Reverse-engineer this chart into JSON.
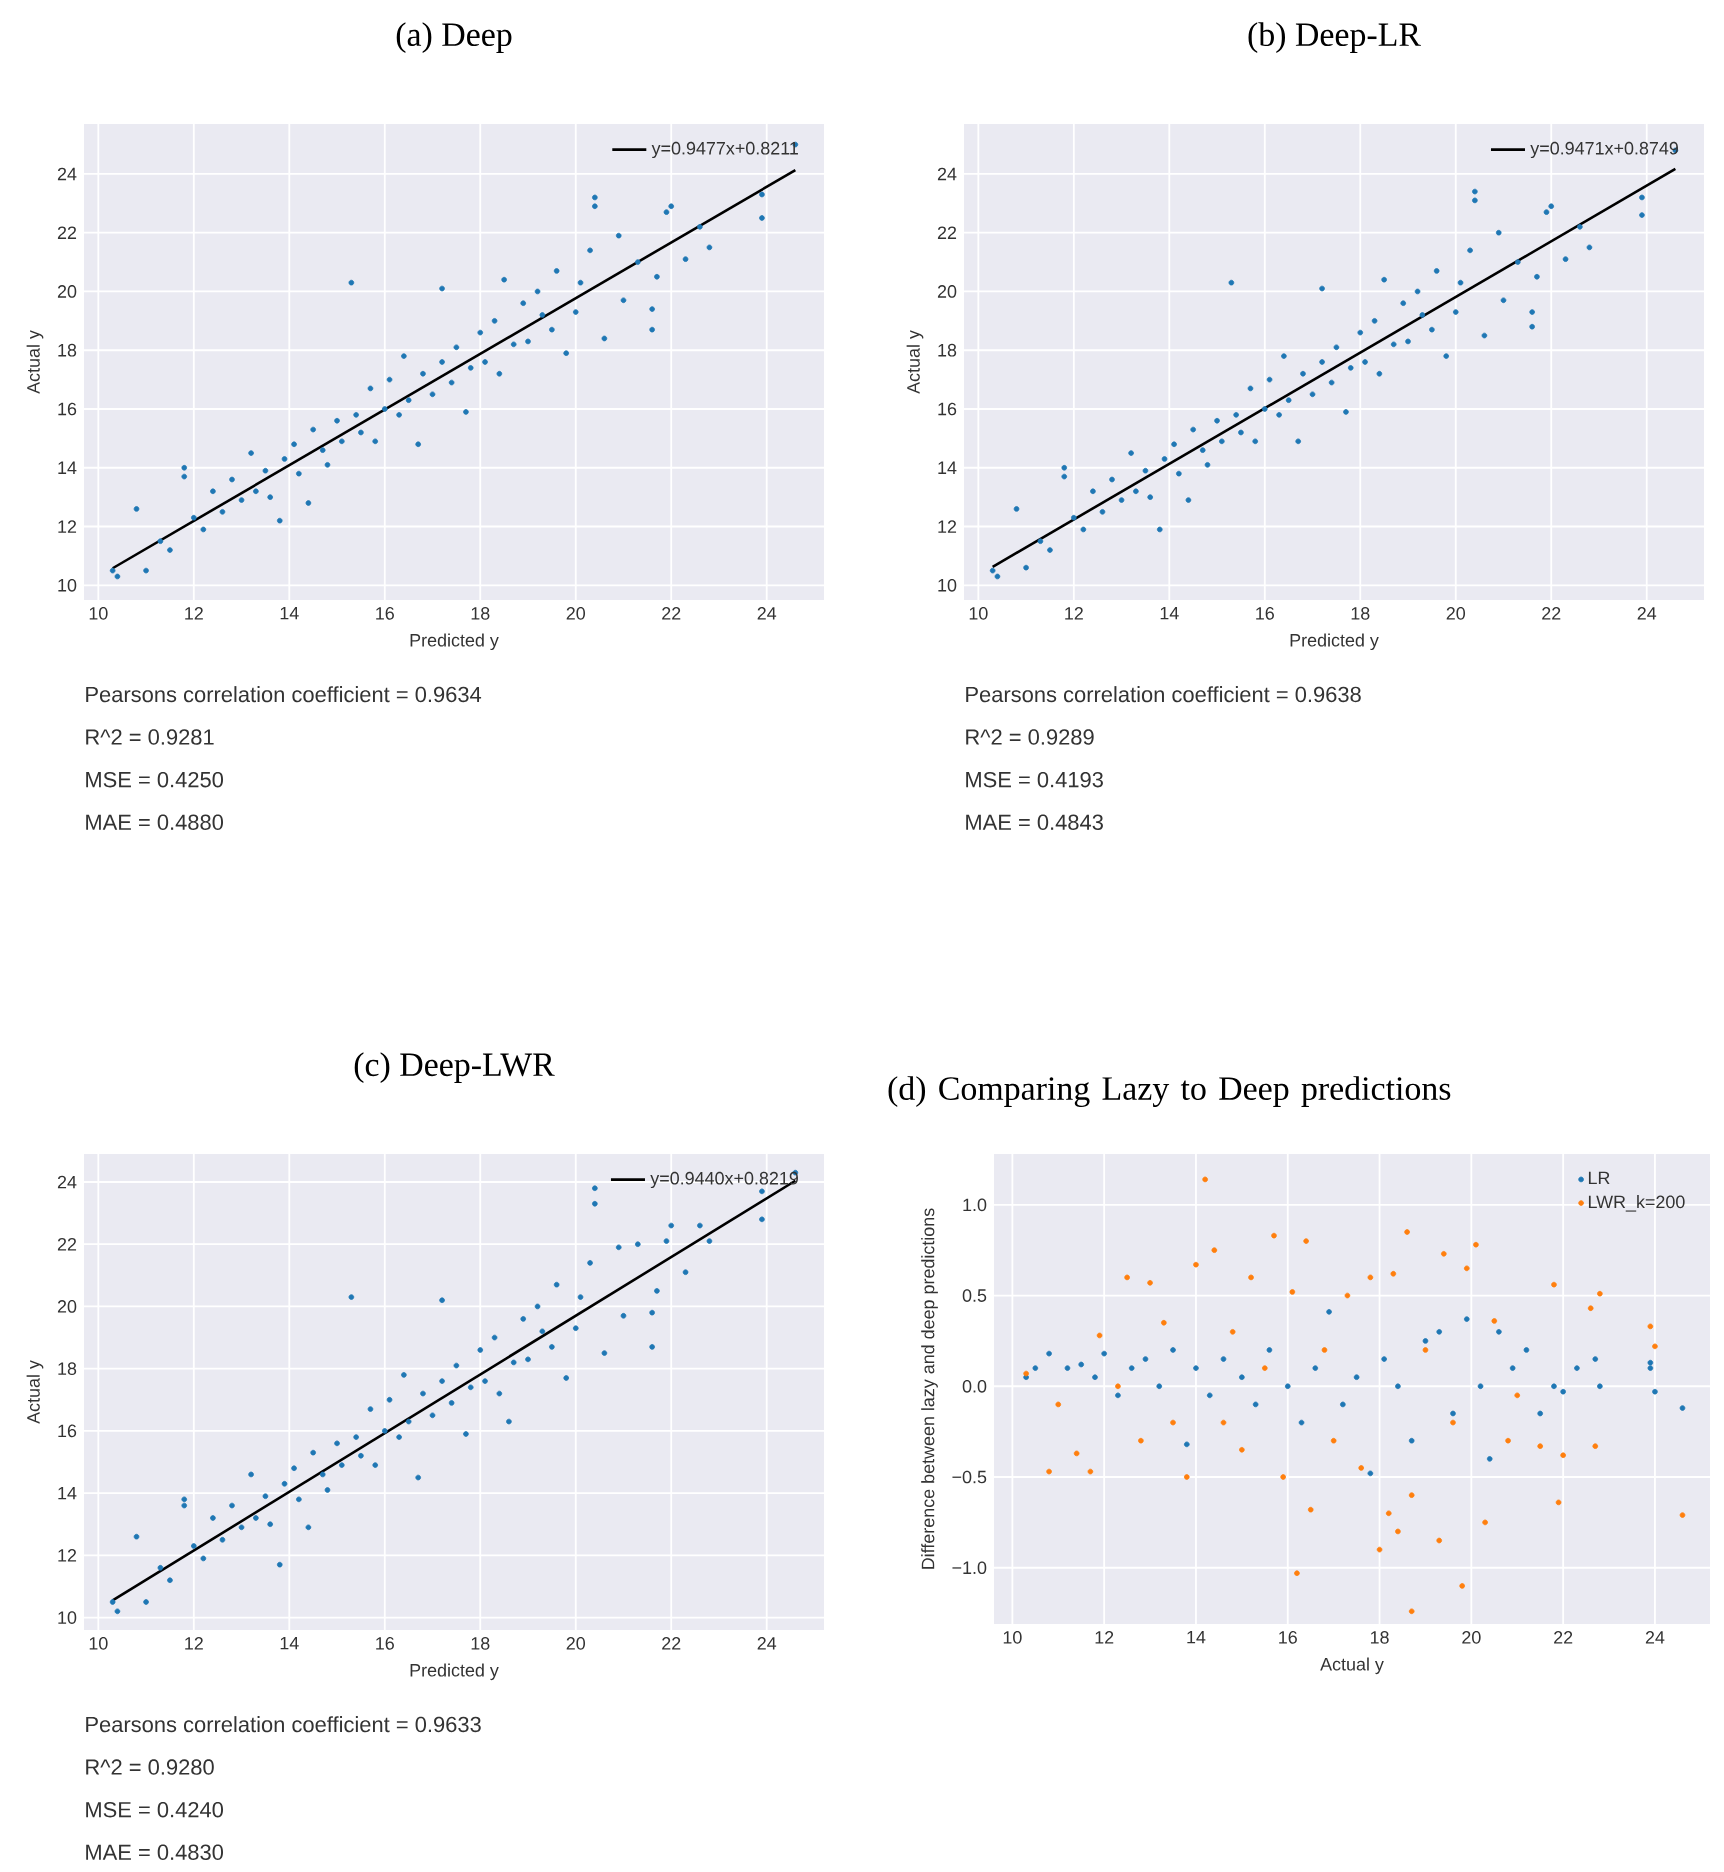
{
  "chart_data": [
    {
      "type": "scatter",
      "title": "(a) Deep",
      "xlabel": "Predicted y",
      "ylabel": "Actual y",
      "xlim": [
        9.7,
        25.2
      ],
      "ylim": [
        9.5,
        25.7
      ],
      "xticks": [
        10,
        12,
        14,
        16,
        18,
        20,
        22,
        24
      ],
      "yticks": [
        10,
        12,
        14,
        16,
        18,
        20,
        22,
        24
      ],
      "grid": true,
      "legend": "top right",
      "marker": "circle",
      "series": [
        {
          "color": "#1f77b4",
          "x": [
            10.3,
            10.4,
            10.8,
            11.0,
            11.3,
            11.5,
            11.8,
            11.8,
            12.0,
            12.2,
            12.4,
            12.6,
            12.8,
            13.0,
            13.2,
            13.3,
            13.5,
            13.6,
            13.8,
            13.9,
            14.1,
            14.2,
            14.4,
            14.5,
            14.7,
            14.8,
            15.0,
            15.1,
            15.3,
            15.4,
            15.5,
            15.7,
            15.8,
            16.0,
            16.1,
            16.3,
            16.4,
            16.5,
            16.7,
            16.8,
            17.0,
            17.2,
            17.2,
            17.4,
            17.5,
            17.7,
            17.8,
            18.0,
            18.1,
            18.3,
            18.4,
            18.5,
            18.7,
            18.9,
            19.0,
            19.2,
            19.3,
            19.5,
            19.6,
            19.8,
            20.0,
            20.1,
            20.4,
            20.4,
            20.3,
            20.6,
            20.9,
            21.0,
            21.3,
            21.6,
            21.6,
            21.7,
            21.9,
            22.0,
            22.3,
            22.6,
            22.8,
            23.9,
            23.9,
            24.6
          ],
          "values": [
            10.5,
            10.3,
            12.6,
            10.5,
            11.5,
            11.2,
            14.0,
            13.7,
            12.3,
            11.9,
            13.2,
            12.5,
            13.6,
            12.9,
            14.5,
            13.2,
            13.9,
            13.0,
            12.2,
            14.3,
            14.8,
            13.8,
            12.8,
            15.3,
            14.6,
            14.1,
            15.6,
            14.9,
            20.3,
            15.8,
            15.2,
            16.7,
            14.9,
            16.0,
            17.0,
            15.8,
            17.8,
            16.3,
            14.8,
            17.2,
            16.5,
            20.1,
            17.6,
            16.9,
            18.1,
            15.9,
            17.4,
            18.6,
            17.6,
            19.0,
            17.2,
            20.4,
            18.2,
            19.6,
            18.3,
            20.0,
            19.2,
            18.7,
            20.7,
            17.9,
            19.3,
            20.3,
            23.2,
            22.9,
            21.4,
            18.4,
            21.9,
            19.7,
            21.0,
            18.7,
            19.4,
            20.5,
            22.7,
            22.9,
            21.1,
            22.2,
            21.5,
            22.5,
            23.3,
            25.0
          ]
        },
        {
          "type": "line",
          "name": "y=0.9477x+0.8211",
          "color": "#000000",
          "marker": "none",
          "x": [
            10.3,
            24.6
          ],
          "values": [
            10.58,
            24.13
          ]
        }
      ],
      "annotations": [
        "Pearsons correlation coefficient = 0.9634",
        "R^2 = 0.9281",
        "MSE = 0.4250",
        "MAE = 0.4880"
      ]
    },
    {
      "type": "scatter",
      "title": "(b) Deep-LR",
      "xlabel": "Predicted y",
      "ylabel": "Actual y",
      "xlim": [
        9.7,
        25.2
      ],
      "ylim": [
        9.5,
        25.7
      ],
      "xticks": [
        10,
        12,
        14,
        16,
        18,
        20,
        22,
        24
      ],
      "yticks": [
        10,
        12,
        14,
        16,
        18,
        20,
        22,
        24
      ],
      "grid": true,
      "legend": "top right",
      "marker": "circle",
      "series": [
        {
          "color": "#1f77b4",
          "x": [
            10.3,
            10.4,
            10.8,
            11.0,
            11.3,
            11.5,
            11.8,
            11.8,
            12.0,
            12.2,
            12.4,
            12.6,
            12.8,
            13.0,
            13.2,
            13.3,
            13.5,
            13.6,
            13.8,
            13.9,
            14.1,
            14.2,
            14.4,
            14.5,
            14.7,
            14.8,
            15.0,
            15.1,
            15.3,
            15.4,
            15.5,
            15.7,
            15.8,
            16.0,
            16.1,
            16.3,
            16.4,
            16.5,
            16.7,
            16.8,
            17.0,
            17.2,
            17.2,
            17.4,
            17.5,
            17.7,
            17.8,
            18.0,
            18.1,
            18.3,
            18.4,
            18.5,
            18.7,
            18.9,
            19.0,
            19.2,
            19.3,
            19.5,
            19.6,
            19.8,
            20.0,
            20.1,
            20.4,
            20.4,
            20.3,
            20.6,
            20.9,
            21.0,
            21.3,
            21.6,
            21.6,
            21.7,
            21.9,
            22.0,
            22.3,
            22.6,
            22.8,
            23.9,
            23.9,
            24.6
          ],
          "values": [
            10.5,
            10.3,
            12.6,
            10.6,
            11.5,
            11.2,
            14.0,
            13.7,
            12.3,
            11.9,
            13.2,
            12.5,
            13.6,
            12.9,
            14.5,
            13.2,
            13.9,
            13.0,
            11.9,
            14.3,
            14.8,
            13.8,
            12.9,
            15.3,
            14.6,
            14.1,
            15.6,
            14.9,
            20.3,
            15.8,
            15.2,
            16.7,
            14.9,
            16.0,
            17.0,
            15.8,
            17.8,
            16.3,
            14.9,
            17.2,
            16.5,
            20.1,
            17.6,
            16.9,
            18.1,
            15.9,
            17.4,
            18.6,
            17.6,
            19.0,
            17.2,
            20.4,
            18.2,
            19.6,
            18.3,
            20.0,
            19.2,
            18.7,
            20.7,
            17.8,
            19.3,
            20.3,
            23.4,
            23.1,
            21.4,
            18.5,
            22.0,
            19.7,
            21.0,
            18.8,
            19.3,
            20.5,
            22.7,
            22.9,
            21.1,
            22.2,
            21.5,
            22.6,
            23.2,
            24.8
          ]
        },
        {
          "type": "line",
          "name": "y=0.9471x+0.8749",
          "color": "#000000",
          "marker": "none",
          "x": [
            10.3,
            24.6
          ],
          "values": [
            10.63,
            24.17
          ]
        }
      ],
      "annotations": [
        "Pearsons correlation coefficient = 0.9638",
        "R^2 = 0.9289",
        "MSE = 0.4193",
        "MAE = 0.4843"
      ]
    },
    {
      "type": "scatter",
      "title": "(c) Deep-LWR",
      "xlabel": "Predicted y",
      "ylabel": "Actual y",
      "xlim": [
        9.7,
        25.2
      ],
      "ylim": [
        9.6,
        24.9
      ],
      "xticks": [
        10,
        12,
        14,
        16,
        18,
        20,
        22,
        24
      ],
      "yticks": [
        10,
        12,
        14,
        16,
        18,
        20,
        22,
        24
      ],
      "grid": true,
      "legend": "top right",
      "marker": "circle",
      "series": [
        {
          "color": "#1f77b4",
          "x": [
            10.3,
            10.4,
            10.8,
            11.0,
            11.3,
            11.5,
            11.8,
            11.8,
            12.0,
            12.2,
            12.4,
            12.6,
            12.8,
            13.0,
            13.2,
            13.3,
            13.5,
            13.6,
            13.8,
            13.9,
            14.1,
            14.2,
            14.4,
            14.5,
            14.7,
            14.8,
            15.0,
            15.1,
            15.3,
            15.4,
            15.5,
            15.7,
            15.8,
            16.0,
            16.1,
            16.3,
            16.4,
            16.5,
            16.7,
            16.8,
            17.0,
            17.2,
            17.2,
            17.4,
            17.5,
            17.7,
            17.8,
            18.0,
            18.1,
            18.3,
            18.4,
            18.6,
            18.7,
            18.9,
            19.0,
            19.2,
            19.3,
            19.5,
            19.6,
            19.8,
            20.0,
            20.1,
            20.4,
            20.4,
            20.3,
            20.6,
            20.9,
            21.0,
            21.3,
            21.6,
            21.6,
            21.7,
            21.9,
            22.0,
            22.3,
            22.6,
            22.8,
            23.9,
            23.9,
            24.6
          ],
          "values": [
            10.5,
            10.2,
            12.6,
            10.5,
            11.6,
            11.2,
            13.8,
            13.6,
            12.3,
            11.9,
            13.2,
            12.5,
            13.6,
            12.9,
            14.6,
            13.2,
            13.9,
            13.0,
            11.7,
            14.3,
            14.8,
            13.8,
            12.9,
            15.3,
            14.6,
            14.1,
            15.6,
            14.9,
            20.3,
            15.8,
            15.2,
            16.7,
            14.9,
            16.0,
            17.0,
            15.8,
            17.8,
            16.3,
            14.5,
            17.2,
            16.5,
            20.2,
            17.6,
            16.9,
            18.1,
            15.9,
            17.4,
            18.6,
            17.6,
            19.0,
            17.2,
            16.3,
            18.2,
            19.6,
            18.3,
            20.0,
            19.2,
            18.7,
            20.7,
            17.7,
            19.3,
            20.3,
            23.8,
            23.3,
            21.4,
            18.5,
            21.9,
            19.7,
            22.0,
            18.7,
            19.8,
            20.5,
            22.1,
            22.6,
            21.1,
            22.6,
            22.1,
            22.8,
            23.7,
            24.3
          ]
        },
        {
          "type": "line",
          "name": "y=0.9440x+0.8219",
          "color": "#000000",
          "marker": "none",
          "x": [
            10.3,
            24.6
          ],
          "values": [
            10.55,
            24.04
          ]
        }
      ],
      "annotations": [
        "Pearsons correlation coefficient = 0.9633",
        "R^2 = 0.9280",
        "MSE = 0.4240",
        "MAE = 0.4830"
      ]
    },
    {
      "type": "scatter",
      "title": "(d) Comparing Lazy to Deep predictions",
      "xlabel": "Actual y",
      "ylabel": "Difference between lazy and deep predictions",
      "xlim": [
        9.6,
        25.2
      ],
      "ylim": [
        -1.31,
        1.28
      ],
      "xticks": [
        10,
        12,
        14,
        16,
        18,
        20,
        22,
        24
      ],
      "yticks": [
        {
          "value": -1.0,
          "label": "−1.0"
        },
        {
          "value": -0.5,
          "label": "−0.5"
        },
        {
          "value": 0.0,
          "label": "0.0"
        },
        {
          "value": 0.5,
          "label": "0.5"
        },
        {
          "value": 1.0,
          "label": "1.0"
        }
      ],
      "grid": true,
      "legend": "top right",
      "marker": "circle",
      "series": [
        {
          "name": "LR",
          "color": "#1f77b4",
          "x": [
            10.3,
            10.5,
            10.8,
            11.2,
            11.5,
            11.8,
            12.0,
            12.3,
            12.6,
            12.9,
            13.2,
            13.5,
            13.8,
            14.0,
            14.3,
            14.6,
            15.0,
            15.3,
            15.6,
            16.0,
            16.3,
            16.6,
            16.9,
            17.2,
            17.5,
            17.8,
            18.1,
            18.4,
            18.7,
            19.0,
            19.3,
            19.6,
            19.9,
            20.2,
            20.4,
            20.6,
            20.9,
            21.2,
            21.5,
            21.8,
            22.0,
            22.3,
            22.7,
            22.8,
            23.9,
            23.9,
            24.0,
            24.6
          ],
          "values": [
            0.05,
            0.1,
            0.18,
            0.1,
            0.12,
            0.05,
            0.18,
            -0.05,
            0.1,
            0.15,
            0.0,
            0.2,
            -0.32,
            0.1,
            -0.05,
            0.15,
            0.05,
            -0.1,
            0.2,
            0.0,
            -0.2,
            0.1,
            0.41,
            -0.1,
            0.05,
            -0.48,
            0.15,
            0.0,
            -0.3,
            0.25,
            0.3,
            -0.15,
            0.37,
            0.0,
            -0.4,
            0.3,
            0.1,
            0.2,
            -0.15,
            0.0,
            -0.03,
            0.1,
            0.15,
            0.0,
            0.13,
            0.1,
            -0.03,
            -0.12
          ]
        },
        {
          "name": "LWR_k=200",
          "color": "#ff7f0e",
          "x": [
            10.3,
            10.8,
            11.0,
            11.4,
            11.7,
            11.9,
            12.3,
            12.5,
            12.8,
            13.0,
            13.3,
            13.5,
            13.8,
            14.0,
            14.2,
            14.4,
            14.6,
            14.8,
            15.0,
            15.2,
            15.5,
            15.7,
            15.9,
            16.1,
            16.2,
            16.4,
            16.5,
            16.8,
            17.0,
            17.3,
            17.6,
            17.8,
            18.0,
            18.2,
            18.3,
            18.4,
            18.6,
            18.7,
            18.7,
            19.0,
            19.3,
            19.4,
            19.6,
            19.8,
            19.9,
            20.1,
            20.3,
            20.5,
            20.8,
            21.0,
            21.5,
            21.8,
            21.9,
            22.0,
            22.6,
            22.7,
            22.8,
            23.9,
            24.0,
            24.6
          ],
          "values": [
            0.07,
            -0.47,
            -0.1,
            -0.37,
            -0.47,
            0.28,
            0.0,
            0.6,
            -0.3,
            0.57,
            0.35,
            -0.2,
            -0.5,
            0.67,
            1.14,
            0.75,
            -0.2,
            0.3,
            -0.35,
            0.6,
            0.1,
            0.83,
            -0.5,
            0.52,
            -1.03,
            0.8,
            -0.68,
            0.2,
            -0.3,
            0.5,
            -0.45,
            0.6,
            -0.9,
            -0.7,
            0.62,
            -0.8,
            0.85,
            -1.24,
            -0.6,
            0.2,
            -0.85,
            0.73,
            -0.2,
            -1.1,
            0.65,
            0.78,
            -0.75,
            0.36,
            -0.3,
            -0.05,
            -0.33,
            0.56,
            -0.64,
            -0.38,
            0.43,
            -0.33,
            0.51,
            0.33,
            0.22,
            -0.71
          ]
        }
      ]
    }
  ]
}
